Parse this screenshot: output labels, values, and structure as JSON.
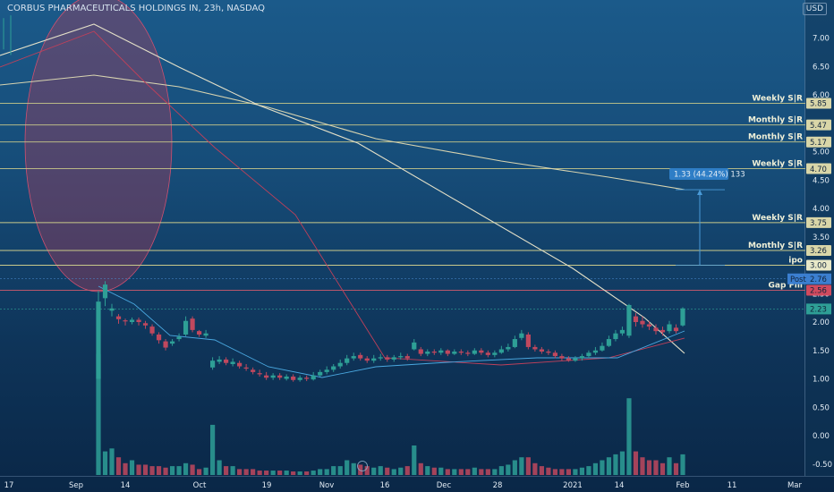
{
  "header": {
    "title": "CORBUS PHARMACEUTICALS HOLDINGS IN, 23h, NASDAQ",
    "currency": "USD"
  },
  "colors": {
    "up": "#2e9f96",
    "down": "#c0485e",
    "level_line": "#c9c98a",
    "post_tag": "#3b7fd0",
    "gap_tag": "#d04a5e",
    "price_tag": "#2e9f96",
    "ma_long": "#d8d4b0",
    "ma_mid": "#e4e0c8",
    "ma_fast": "#c0405a",
    "ma_blue": "#4aa8e0"
  },
  "chart_data": {
    "type": "candlestick",
    "x_ticks": [
      "17",
      "Sep",
      "14",
      "Oct",
      "19",
      "Nov",
      "16",
      "Dec",
      "28",
      "2021",
      "14",
      "Feb",
      "11",
      "Mar"
    ],
    "y_ticks": [
      "7.00",
      "6.50",
      "6.00",
      "5.50",
      "5.00",
      "4.50",
      "4.00",
      "3.50",
      "3.00",
      "2.50",
      "2.00",
      "1.50",
      "1.00",
      "0.50",
      "0.00",
      "-0.50"
    ],
    "levels": [
      {
        "label": "Monthly S|R",
        "value": "5.47"
      },
      {
        "label": "Weekly S|R",
        "value": "5.85"
      },
      {
        "label": "Monthly S|R",
        "value": "5.17"
      },
      {
        "label": "Weekly S|R",
        "value": "4.70"
      },
      {
        "label": "Weekly S|R",
        "value": "3.75"
      },
      {
        "label": "Monthly S|R",
        "value": "3.26"
      },
      {
        "label": "ipo",
        "value": "3.00"
      },
      {
        "label": "Gap Fill",
        "value": "2.56"
      }
    ],
    "post_tag": {
      "label": "Post",
      "value": "2.76"
    },
    "last_price": "2.23",
    "measure_label": "1.33 (44.24%) 133",
    "candles": [
      [
        1.0,
        2.36,
        2.55,
        2.36
      ],
      [
        2.42,
        2.66,
        2.72,
        2.28
      ],
      [
        2.2,
        2.24,
        2.32,
        2.1
      ],
      [
        2.1,
        2.05,
        2.14,
        1.97
      ],
      [
        2.03,
        2.02,
        2.06,
        1.94
      ],
      [
        2.0,
        2.04,
        2.08,
        1.96
      ],
      [
        2.04,
        2.0,
        2.08,
        1.94
      ],
      [
        1.98,
        1.94,
        2.02,
        1.88
      ],
      [
        1.92,
        1.8,
        1.96,
        1.76
      ],
      [
        1.78,
        1.68,
        1.82,
        1.62
      ],
      [
        1.66,
        1.55,
        1.7,
        1.5
      ],
      [
        1.62,
        1.66,
        1.7,
        1.58
      ],
      [
        1.7,
        1.74,
        1.8,
        1.66
      ],
      [
        1.78,
        2.02,
        2.1,
        1.75
      ],
      [
        2.06,
        1.86,
        2.1,
        1.82
      ],
      [
        1.84,
        1.78,
        1.86,
        1.74
      ],
      [
        1.76,
        1.8,
        1.86,
        1.72
      ],
      [
        1.2,
        1.32,
        1.38,
        1.16
      ],
      [
        1.3,
        1.34,
        1.4,
        1.26
      ],
      [
        1.34,
        1.28,
        1.38,
        1.24
      ],
      [
        1.26,
        1.3,
        1.36,
        1.22
      ],
      [
        1.28,
        1.22,
        1.32,
        1.18
      ],
      [
        1.2,
        1.18,
        1.26,
        1.14
      ],
      [
        1.16,
        1.12,
        1.2,
        1.08
      ],
      [
        1.1,
        1.08,
        1.16,
        1.04
      ],
      [
        1.06,
        1.02,
        1.12,
        0.98
      ],
      [
        1.02,
        1.06,
        1.1,
        0.98
      ],
      [
        1.06,
        1.02,
        1.1,
        0.98
      ],
      [
        1.0,
        1.04,
        1.08,
        0.97
      ],
      [
        1.04,
        0.98,
        1.08,
        0.95
      ],
      [
        0.98,
        1.02,
        1.06,
        0.95
      ],
      [
        1.02,
        1.0,
        1.06,
        0.96
      ],
      [
        0.99,
        1.06,
        1.12,
        0.97
      ],
      [
        1.06,
        1.12,
        1.16,
        1.04
      ],
      [
        1.12,
        1.16,
        1.22,
        1.08
      ],
      [
        1.16,
        1.22,
        1.26,
        1.12
      ],
      [
        1.22,
        1.28,
        1.34,
        1.18
      ],
      [
        1.28,
        1.36,
        1.42,
        1.24
      ],
      [
        1.36,
        1.4,
        1.46,
        1.32
      ],
      [
        1.42,
        1.36,
        1.46,
        1.32
      ],
      [
        1.36,
        1.32,
        1.4,
        1.28
      ],
      [
        1.32,
        1.36,
        1.42,
        1.28
      ],
      [
        1.36,
        1.38,
        1.44,
        1.32
      ],
      [
        1.38,
        1.34,
        1.42,
        1.3
      ],
      [
        1.34,
        1.38,
        1.42,
        1.3
      ],
      [
        1.38,
        1.4,
        1.46,
        1.34
      ],
      [
        1.4,
        1.36,
        1.44,
        1.32
      ],
      [
        1.52,
        1.64,
        1.7,
        1.5
      ],
      [
        1.52,
        1.44,
        1.56,
        1.4
      ],
      [
        1.44,
        1.48,
        1.52,
        1.4
      ],
      [
        1.48,
        1.46,
        1.52,
        1.42
      ],
      [
        1.46,
        1.5,
        1.54,
        1.42
      ],
      [
        1.5,
        1.44,
        1.52,
        1.4
      ],
      [
        1.44,
        1.48,
        1.52,
        1.42
      ],
      [
        1.48,
        1.46,
        1.52,
        1.42
      ],
      [
        1.46,
        1.44,
        1.5,
        1.4
      ],
      [
        1.44,
        1.5,
        1.54,
        1.42
      ],
      [
        1.5,
        1.46,
        1.54,
        1.42
      ],
      [
        1.46,
        1.42,
        1.5,
        1.38
      ],
      [
        1.42,
        1.46,
        1.5,
        1.38
      ],
      [
        1.46,
        1.52,
        1.58,
        1.44
      ],
      [
        1.52,
        1.56,
        1.62,
        1.48
      ],
      [
        1.56,
        1.7,
        1.76,
        1.54
      ],
      [
        1.72,
        1.8,
        1.86,
        1.68
      ],
      [
        1.78,
        1.56,
        1.82,
        1.52
      ],
      [
        1.56,
        1.52,
        1.6,
        1.48
      ],
      [
        1.52,
        1.48,
        1.56,
        1.44
      ],
      [
        1.48,
        1.46,
        1.52,
        1.42
      ],
      [
        1.46,
        1.4,
        1.5,
        1.36
      ],
      [
        1.4,
        1.36,
        1.44,
        1.32
      ],
      [
        1.36,
        1.32,
        1.4,
        1.3
      ],
      [
        1.32,
        1.36,
        1.4,
        1.3
      ],
      [
        1.36,
        1.4,
        1.44,
        1.32
      ],
      [
        1.4,
        1.46,
        1.5,
        1.36
      ],
      [
        1.46,
        1.5,
        1.56,
        1.42
      ],
      [
        1.5,
        1.58,
        1.64,
        1.48
      ],
      [
        1.58,
        1.7,
        1.76,
        1.56
      ],
      [
        1.7,
        1.8,
        1.86,
        1.66
      ],
      [
        1.8,
        1.86,
        1.92,
        1.76
      ],
      [
        1.76,
        2.3,
        2.32,
        1.72
      ],
      [
        2.1,
        2.0,
        2.16,
        1.92
      ],
      [
        2.02,
        1.96,
        2.1,
        1.9
      ],
      [
        1.96,
        1.92,
        2.02,
        1.86
      ],
      [
        1.9,
        1.84,
        1.96,
        1.78
      ],
      [
        1.86,
        1.82,
        1.92,
        1.76
      ],
      [
        1.84,
        1.96,
        2.02,
        1.8
      ],
      [
        1.9,
        1.84,
        1.96,
        1.8
      ],
      [
        1.94,
        2.24,
        2.26,
        1.92
      ]
    ],
    "volume": [
      4.1,
      0.8,
      0.9,
      0.6,
      0.4,
      0.5,
      0.35,
      0.35,
      0.3,
      0.3,
      0.25,
      0.3,
      0.3,
      0.4,
      0.35,
      0.2,
      0.25,
      1.7,
      0.5,
      0.3,
      0.3,
      0.2,
      0.2,
      0.2,
      0.15,
      0.15,
      0.15,
      0.15,
      0.15,
      0.12,
      0.12,
      0.12,
      0.15,
      0.2,
      0.2,
      0.3,
      0.3,
      0.5,
      0.4,
      0.35,
      0.3,
      0.25,
      0.3,
      0.25,
      0.2,
      0.25,
      0.3,
      1.0,
      0.4,
      0.3,
      0.25,
      0.25,
      0.2,
      0.2,
      0.2,
      0.2,
      0.25,
      0.2,
      0.2,
      0.2,
      0.3,
      0.35,
      0.5,
      0.6,
      0.6,
      0.4,
      0.3,
      0.25,
      0.2,
      0.2,
      0.2,
      0.2,
      0.25,
      0.3,
      0.4,
      0.5,
      0.6,
      0.7,
      0.8,
      2.6,
      0.8,
      0.6,
      0.5,
      0.5,
      0.4,
      0.6,
      0.4,
      0.7
    ]
  }
}
